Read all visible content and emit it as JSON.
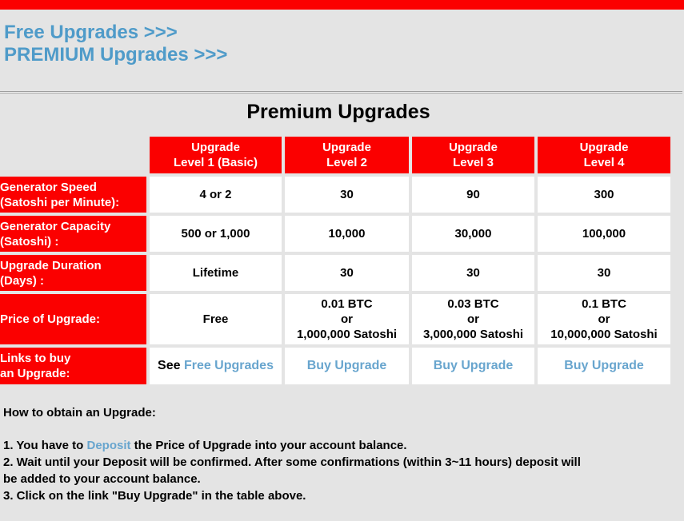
{
  "theme": {
    "background": "#e4e4e4",
    "accent_red": "#fb0000",
    "nav_link_blue": "#4f9bc9",
    "body_link_blue": "#68a5ce",
    "cell_background": "#ffffff",
    "text_color": "#000000",
    "divider_gray": "#9e9e9e"
  },
  "nav": {
    "free_upgrades": "Free Upgrades >>>",
    "premium_upgrades": "PREMIUM Upgrades >>>"
  },
  "main": {
    "title": "Premium Upgrades",
    "table": {
      "columns": [
        {
          "line1": "Upgrade",
          "line2": "Level 1 (Basic)"
        },
        {
          "line1": "Upgrade",
          "line2": "Level 2"
        },
        {
          "line1": "Upgrade",
          "line2": "Level 3"
        },
        {
          "line1": "Upgrade",
          "line2": "Level 4"
        }
      ],
      "rows": [
        {
          "header1": "Generator Speed",
          "header2": "(Satoshi per Minute):",
          "cells": [
            "4 or 2",
            "30",
            "90",
            "300"
          ]
        },
        {
          "header1": "Generator Capacity",
          "header2": "(Satoshi) :",
          "cells": [
            "500 or 1,000",
            "10,000",
            "30,000",
            "100,000"
          ]
        },
        {
          "header1": "Upgrade Duration",
          "header2": "(Days) :",
          "cells": [
            "Lifetime",
            "30",
            "30",
            "30"
          ]
        },
        {
          "header1": "Price of Upgrade:",
          "price": {
            "level1": "Free",
            "level2": [
              "0.01 BTC",
              "or",
              "1,000,000 Satoshi"
            ],
            "level3": [
              "0.03 BTC",
              "or",
              "3,000,000 Satoshi"
            ],
            "level4": [
              "0.1 BTC",
              "or",
              "10,000,000 Satoshi"
            ]
          }
        },
        {
          "header1": "Links to buy",
          "header2": "an Upgrade:",
          "links": {
            "see_prefix": "See ",
            "free_upgrades": "Free Upgrades",
            "buy_upgrade": "Buy Upgrade"
          }
        }
      ]
    }
  },
  "howto": {
    "heading": "How to obtain an Upgrade:",
    "step1_prefix": "1. You have to ",
    "step1_link": "Deposit",
    "step1_suffix": " the Price of Upgrade into your account balance.",
    "step2_line1": "2. Wait until your Deposit will be confirmed. After some confirmations (within 3~11 hours) deposit will",
    "step2_line2": "be added to your account balance.",
    "step3": "3. Click on the link \"Buy Upgrade\" in the table above."
  }
}
